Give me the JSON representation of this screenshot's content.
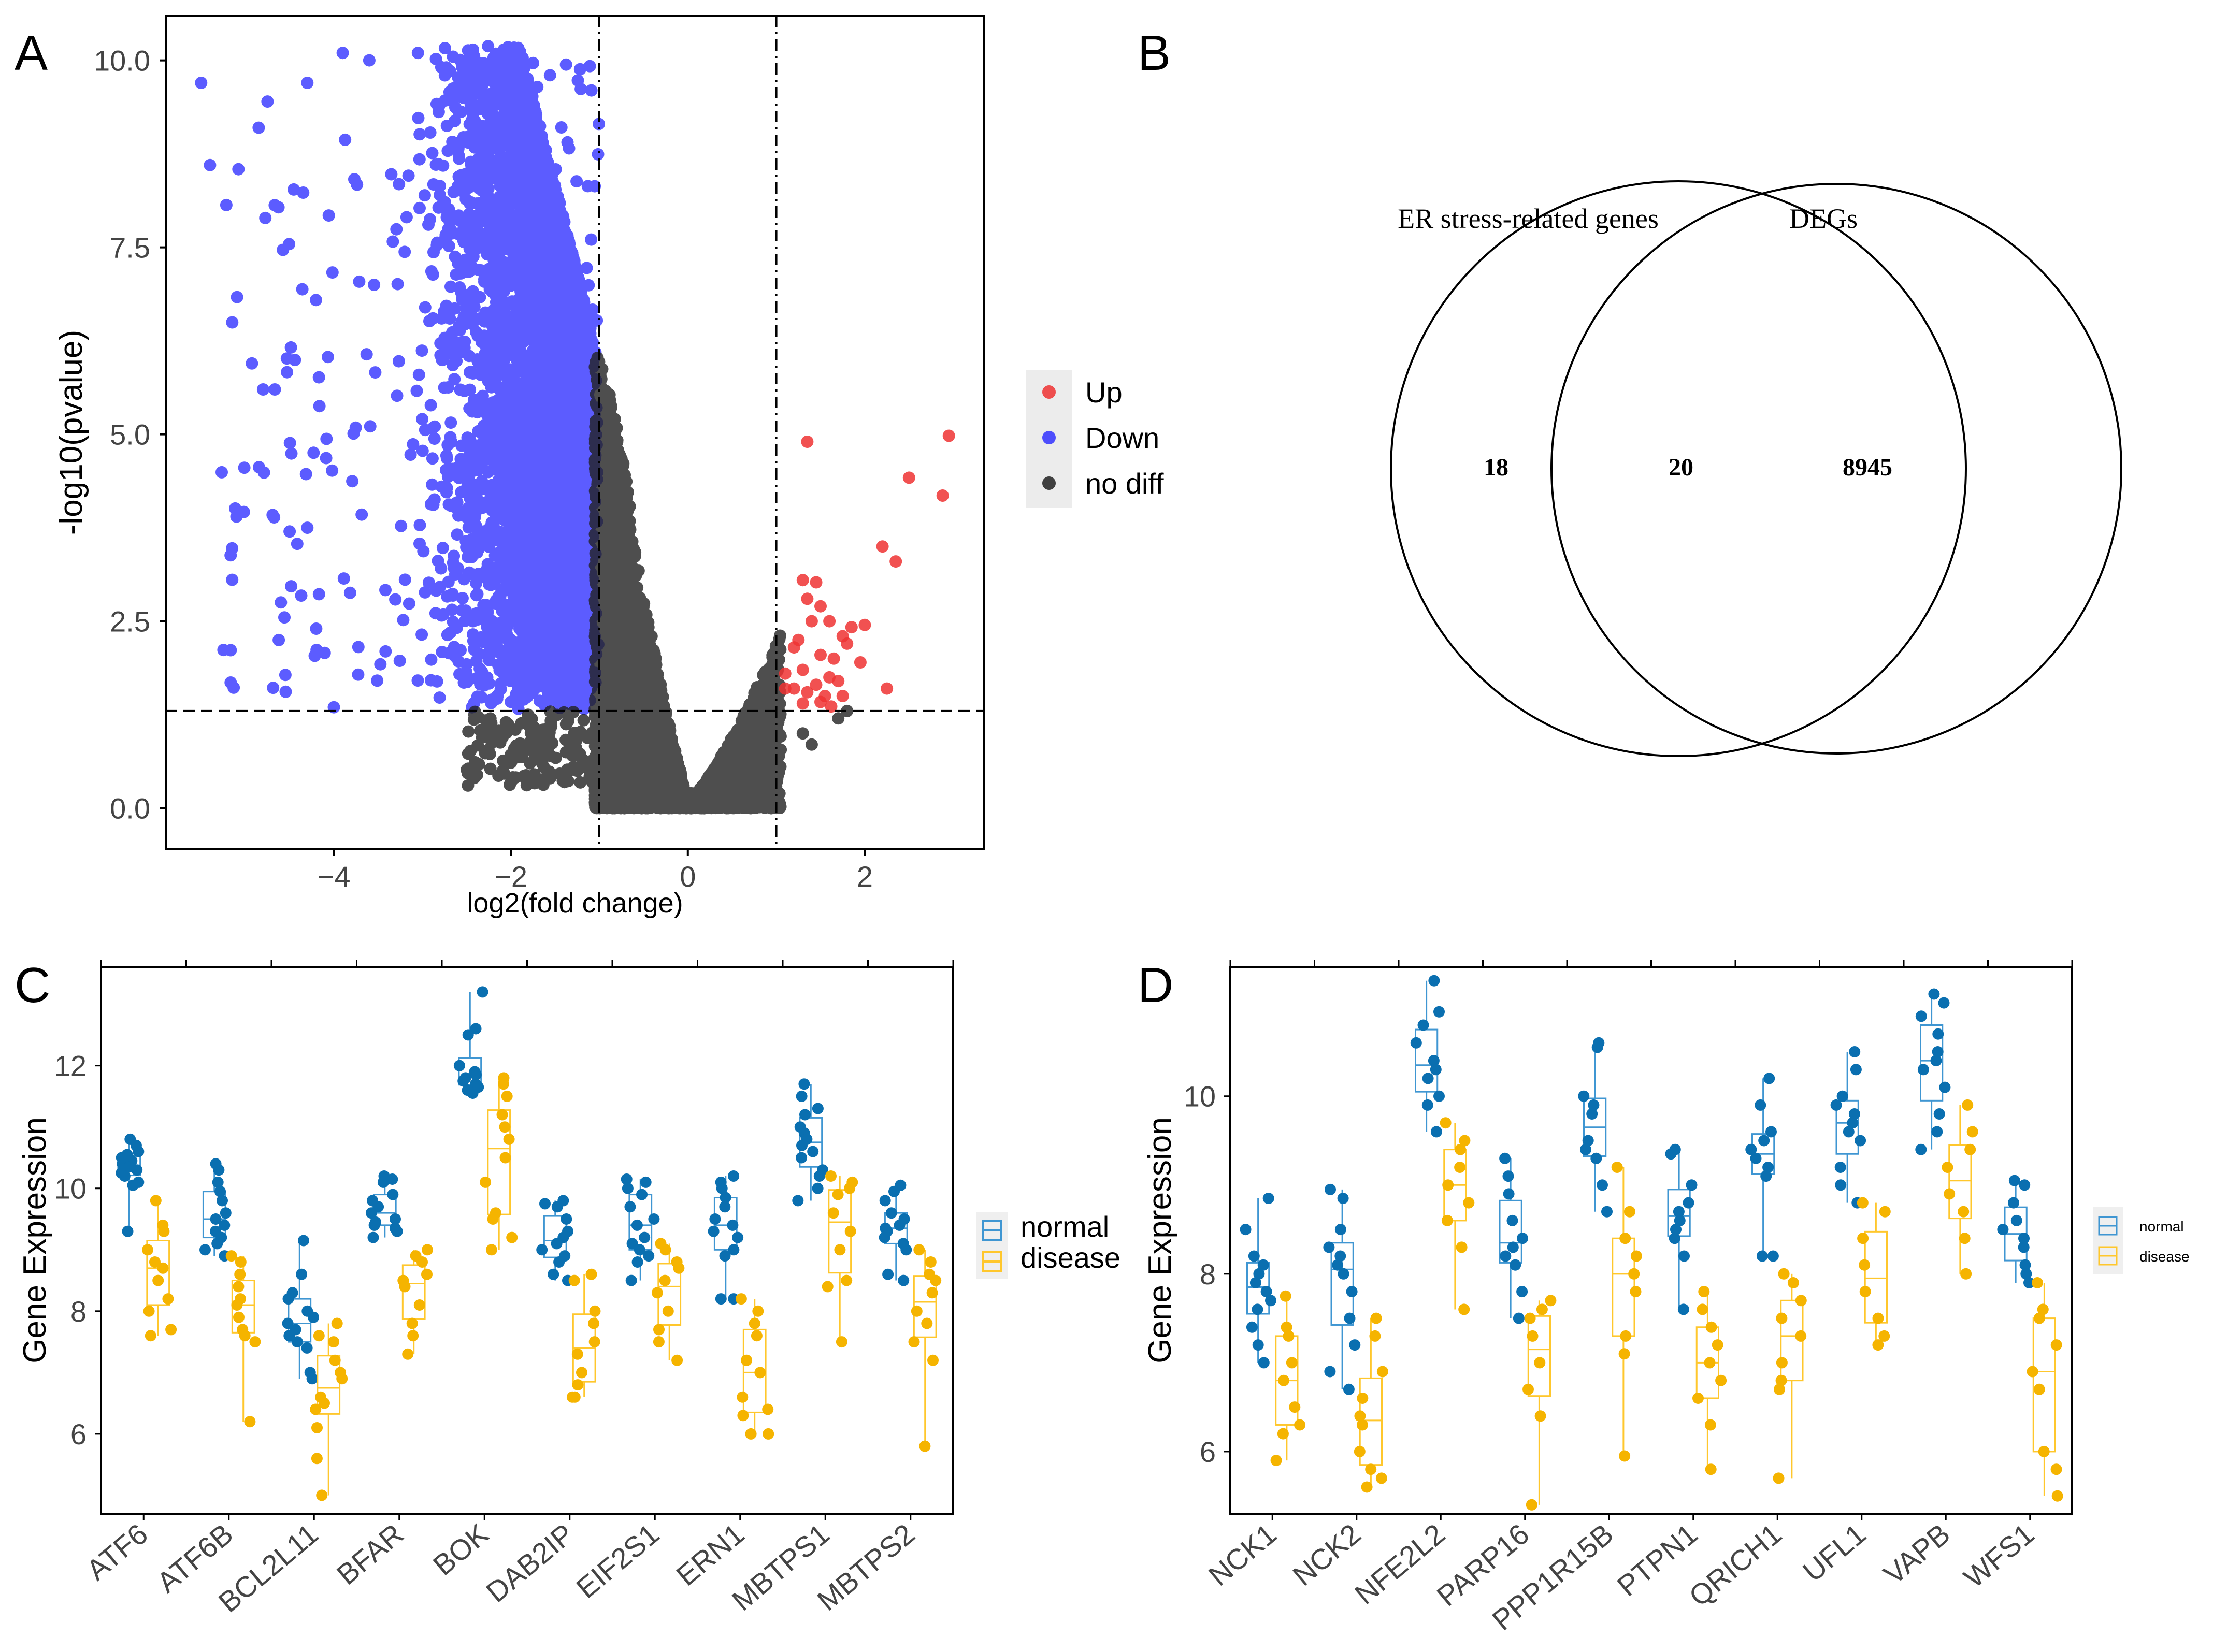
{
  "panels": {
    "A": {
      "letter": "A"
    },
    "B": {
      "letter": "B"
    },
    "C": {
      "letter": "C"
    },
    "D": {
      "letter": "D"
    }
  },
  "colors": {
    "up": "#ee3333",
    "down": "#3333ff",
    "nodiff": "#222222",
    "normal": "#0a6fb0",
    "disease": "#f5b400",
    "normal_light": "#3f96d2",
    "disease_light": "#ffc72c"
  },
  "chart_data": [
    {
      "id": "A",
      "type": "scatter",
      "title": "",
      "xlabel": "log2(fold change)",
      "ylabel": "-log10(pvalue)",
      "xlim": [
        -5.9,
        3.35
      ],
      "ylim": [
        -0.55,
        10.6
      ],
      "xticks": [
        -4,
        -2,
        0,
        2
      ],
      "xtick_labels": [
        "−4",
        "−2",
        "0",
        "2"
      ],
      "yticks": [
        0.0,
        2.5,
        5.0,
        7.5,
        10.0
      ],
      "ytick_labels": [
        "0.0",
        "2.5",
        "5.0",
        "7.5",
        "10.0"
      ],
      "thresholds": {
        "x": [
          -1,
          1
        ],
        "y": 1.3
      },
      "legend": {
        "position": "right",
        "items": [
          {
            "key": "up",
            "label": "Up"
          },
          {
            "key": "down",
            "label": "Down"
          },
          {
            "key": "nodiff",
            "label": "no diff"
          }
        ]
      },
      "series": [
        {
          "name": "Up",
          "points": [
            [
              2.95,
              4.98
            ],
            [
              1.35,
              4.9
            ],
            [
              2.5,
              4.42
            ],
            [
              2.88,
              4.18
            ],
            [
              2.2,
              3.5
            ],
            [
              2.35,
              3.3
            ],
            [
              1.3,
              3.05
            ],
            [
              1.45,
              3.02
            ],
            [
              1.35,
              2.8
            ],
            [
              1.5,
              2.7
            ],
            [
              1.4,
              2.5
            ],
            [
              1.6,
              2.5
            ],
            [
              1.85,
              2.42
            ],
            [
              2.0,
              2.45
            ],
            [
              1.25,
              2.25
            ],
            [
              1.75,
              2.3
            ],
            [
              1.8,
              2.2
            ],
            [
              1.2,
              2.15
            ],
            [
              1.5,
              2.05
            ],
            [
              1.65,
              2.0
            ],
            [
              1.95,
              1.95
            ],
            [
              1.1,
              1.8
            ],
            [
              1.3,
              1.85
            ],
            [
              1.6,
              1.75
            ],
            [
              1.7,
              1.7
            ],
            [
              1.45,
              1.65
            ],
            [
              1.2,
              1.6
            ],
            [
              1.35,
              1.55
            ],
            [
              1.1,
              1.6
            ],
            [
              2.25,
              1.6
            ],
            [
              1.55,
              1.5
            ],
            [
              1.75,
              1.5
            ],
            [
              1.3,
              1.4
            ],
            [
              1.5,
              1.42
            ],
            [
              1.62,
              1.36
            ]
          ]
        },
        {
          "name": "Down",
          "points": []
        },
        {
          "name": "no diff",
          "points": []
        }
      ]
    },
    {
      "id": "B",
      "type": "venn",
      "sets": [
        {
          "label": "ER stress-related genes",
          "only": "18"
        },
        {
          "label": "DEGs",
          "only": "8945"
        }
      ],
      "intersection": "20"
    },
    {
      "id": "C",
      "type": "box",
      "title": "",
      "xlabel": "",
      "ylabel": "Gene  Expression",
      "ylim": [
        4.7,
        13.6
      ],
      "yticks": [
        6,
        8,
        10,
        12
      ],
      "legend": {
        "position": "right",
        "items": [
          "normal",
          "disease"
        ]
      },
      "categories": [
        "ATF6",
        "ATF6B",
        "BCL2L11",
        "BFAR",
        "BOK",
        "DAB2IP",
        "EIF2S1",
        "ERN1",
        "MBTPS1",
        "MBTPS2"
      ],
      "series": [
        {
          "name": "normal",
          "values": [
            [
              10.8,
              10.7,
              10.6,
              10.55,
              10.5,
              10.45,
              10.4,
              10.35,
              10.3,
              10.25,
              10.2,
              10.1,
              10.05,
              9.3
            ],
            [
              10.4,
              10.3,
              10.1,
              9.95,
              9.8,
              9.6,
              9.5,
              9.4,
              9.3,
              9.2,
              9.1,
              9.0,
              8.9
            ],
            [
              9.15,
              8.6,
              8.3,
              8.2,
              8.0,
              7.9,
              7.8,
              7.7,
              7.6,
              7.5,
              7.4,
              7.0,
              6.9
            ],
            [
              10.2,
              10.15,
              10.1,
              9.9,
              9.8,
              9.7,
              9.6,
              9.5,
              9.45,
              9.4,
              9.35,
              9.3,
              9.2
            ],
            [
              13.2,
              12.6,
              12.5,
              12.0,
              11.9,
              11.85,
              11.8,
              11.75,
              11.7,
              11.65,
              11.6,
              11.55
            ],
            [
              9.8,
              9.75,
              9.7,
              9.5,
              9.3,
              9.2,
              9.1,
              9.0,
              8.9,
              8.8,
              8.6,
              8.5
            ],
            [
              10.15,
              10.1,
              10.0,
              9.9,
              9.7,
              9.5,
              9.4,
              9.2,
              9.1,
              9.0,
              8.9,
              8.8,
              8.5
            ],
            [
              10.2,
              10.1,
              10.0,
              9.85,
              9.7,
              9.5,
              9.4,
              9.3,
              9.2,
              9.0,
              8.9,
              8.2,
              8.2
            ],
            [
              11.7,
              11.5,
              11.3,
              11.2,
              11.0,
              10.9,
              10.8,
              10.7,
              10.6,
              10.5,
              10.3,
              10.2,
              10.0,
              9.8
            ],
            [
              10.05,
              9.95,
              9.8,
              9.6,
              9.5,
              9.4,
              9.35,
              9.3,
              9.2,
              9.1,
              9.0,
              8.6,
              8.5
            ]
          ]
        },
        {
          "name": "disease",
          "values": [
            [
              9.8,
              9.4,
              9.3,
              9.0,
              8.8,
              8.7,
              8.5,
              8.2,
              8.0,
              7.7,
              7.6
            ],
            [
              8.9,
              8.8,
              8.6,
              8.4,
              8.2,
              8.1,
              7.9,
              7.7,
              7.6,
              7.5,
              6.2
            ],
            [
              7.8,
              7.6,
              7.5,
              7.2,
              7.0,
              6.9,
              6.6,
              6.5,
              6.4,
              6.1,
              5.6,
              5.0
            ],
            [
              9.0,
              8.9,
              8.8,
              8.6,
              8.5,
              8.4,
              8.1,
              7.8,
              7.6,
              7.3
            ],
            [
              11.8,
              11.7,
              11.5,
              11.2,
              11.0,
              10.8,
              10.5,
              10.1,
              9.6,
              9.2,
              9.0,
              9.5
            ],
            [
              8.6,
              8.5,
              8.0,
              7.8,
              7.5,
              7.3,
              7.0,
              6.8,
              6.6,
              6.6
            ],
            [
              9.1,
              9.0,
              8.8,
              8.7,
              8.5,
              8.3,
              8.0,
              7.7,
              7.5,
              7.2
            ],
            [
              8.2,
              8.0,
              7.8,
              7.6,
              7.2,
              7.0,
              6.6,
              6.4,
              6.3,
              6.0,
              6.0
            ],
            [
              10.2,
              10.1,
              10.0,
              9.9,
              9.6,
              9.3,
              9.0,
              8.5,
              8.4,
              7.5
            ],
            [
              9.0,
              8.8,
              8.6,
              8.5,
              8.3,
              8.0,
              7.8,
              7.5,
              7.2,
              5.8
            ]
          ]
        }
      ]
    },
    {
      "id": "D",
      "type": "box",
      "title": "",
      "xlabel": "",
      "ylabel": "Gene  Expression",
      "ylim": [
        5.3,
        11.45
      ],
      "yticks": [
        6,
        8,
        10
      ],
      "legend": {
        "position": "right",
        "items": [
          "normal",
          "disease"
        ]
      },
      "categories": [
        "NCK1",
        "NCK2",
        "NFE2L2",
        "PARP16",
        "PPP1R15B",
        "PTPN1",
        "QRICH1",
        "UFL1",
        "VAPB",
        "WFS1"
      ],
      "series": [
        {
          "name": "normal",
          "values": [
            [
              8.85,
              8.5,
              8.2,
              8.1,
              8.0,
              7.9,
              7.8,
              7.7,
              7.6,
              7.4,
              7.2,
              7.0
            ],
            [
              8.95,
              8.85,
              8.5,
              8.3,
              8.2,
              8.1,
              8.0,
              7.8,
              7.5,
              7.2,
              6.9,
              6.7
            ],
            [
              11.3,
              10.95,
              10.8,
              10.6,
              10.4,
              10.3,
              10.2,
              10.0,
              9.9,
              9.6
            ],
            [
              9.3,
              9.1,
              8.9,
              8.6,
              8.4,
              8.3,
              8.2,
              8.1,
              7.8,
              7.5
            ],
            [
              10.6,
              10.55,
              10.0,
              9.9,
              9.8,
              9.5,
              9.4,
              9.3,
              9.0,
              8.7
            ],
            [
              9.4,
              9.35,
              9.0,
              8.8,
              8.7,
              8.6,
              8.5,
              8.4,
              8.2,
              7.6
            ],
            [
              10.2,
              9.9,
              9.6,
              9.5,
              9.4,
              9.3,
              9.2,
              9.1,
              8.2,
              8.2
            ],
            [
              10.5,
              10.3,
              10.0,
              9.9,
              9.8,
              9.7,
              9.6,
              9.5,
              9.2,
              9.0,
              8.8
            ],
            [
              11.15,
              11.05,
              10.9,
              10.7,
              10.5,
              10.4,
              10.3,
              10.1,
              9.8,
              9.6,
              9.4
            ],
            [
              9.05,
              9.0,
              8.8,
              8.6,
              8.5,
              8.4,
              8.3,
              8.1,
              8.0,
              7.9
            ]
          ]
        },
        {
          "name": "disease",
          "values": [
            [
              7.75,
              7.4,
              7.3,
              7.0,
              6.8,
              6.5,
              6.3,
              6.2,
              5.9
            ],
            [
              7.5,
              7.3,
              6.9,
              6.6,
              6.4,
              6.3,
              6.0,
              5.8,
              5.7,
              5.6
            ],
            [
              9.7,
              9.5,
              9.4,
              9.2,
              9.0,
              8.8,
              8.6,
              8.3,
              7.6
            ],
            [
              7.7,
              7.6,
              7.5,
              7.3,
              7.0,
              6.7,
              6.4,
              5.4
            ],
            [
              9.2,
              8.7,
              8.4,
              8.2,
              8.0,
              7.8,
              7.3,
              7.1,
              5.95
            ],
            [
              7.8,
              7.6,
              7.4,
              7.2,
              7.0,
              6.8,
              6.6,
              6.3,
              5.8
            ],
            [
              8.0,
              7.9,
              7.7,
              7.5,
              7.3,
              7.0,
              6.8,
              6.7,
              5.7
            ],
            [
              8.8,
              8.7,
              8.4,
              8.1,
              7.8,
              7.5,
              7.3,
              7.2
            ],
            [
              9.9,
              9.6,
              9.4,
              9.2,
              8.9,
              8.7,
              8.4,
              8.0
            ],
            [
              7.9,
              7.6,
              7.5,
              7.2,
              6.9,
              6.7,
              6.0,
              5.8,
              5.5
            ]
          ]
        }
      ]
    }
  ]
}
